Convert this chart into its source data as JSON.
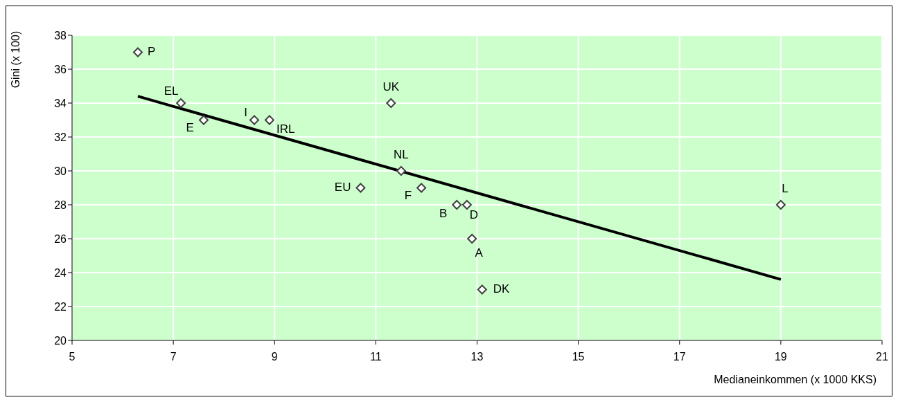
{
  "chart_data": {
    "type": "scatter",
    "xlabel": "Medianeinkommen (x 1000 KKS)",
    "ylabel": "Gini (x 100)",
    "xlim": [
      5,
      21
    ],
    "xticks": [
      5,
      7,
      9,
      11,
      13,
      15,
      17,
      19,
      21
    ],
    "ylim": [
      20,
      38
    ],
    "yticks": [
      20,
      22,
      24,
      26,
      28,
      30,
      32,
      34,
      36,
      38
    ],
    "grid": true,
    "series": [
      {
        "marker": "diamond",
        "color": "#404040",
        "x": [
          6.3,
          7.15,
          7.6,
          8.6,
          8.9,
          11.3,
          11.5,
          10.7,
          11.9,
          12.6,
          12.8,
          12.9,
          13.1,
          19.0
        ],
        "values": [
          37,
          34,
          33,
          33,
          33,
          34,
          30,
          29,
          29,
          28,
          28,
          26,
          23,
          28
        ]
      },
      {
        "type": "line",
        "color": "#000000",
        "line_style": "solid",
        "x": [
          6.3,
          19.0
        ],
        "values": [
          34.4,
          23.6
        ]
      }
    ],
    "annotations": [
      {
        "text": "P",
        "x": 6.3,
        "y": 37
      },
      {
        "text": "EL",
        "x": 7.15,
        "y": 34
      },
      {
        "text": "E",
        "x": 7.6,
        "y": 33
      },
      {
        "text": "I",
        "x": 8.6,
        "y": 33
      },
      {
        "text": "IRL",
        "x": 8.9,
        "y": 33
      },
      {
        "text": "UK",
        "x": 11.3,
        "y": 34
      },
      {
        "text": "NL",
        "x": 11.5,
        "y": 30
      },
      {
        "text": "EU",
        "x": 10.7,
        "y": 29
      },
      {
        "text": "F",
        "x": 11.9,
        "y": 29
      },
      {
        "text": "B",
        "x": 12.6,
        "y": 28
      },
      {
        "text": "D",
        "x": 12.8,
        "y": 28
      },
      {
        "text": "A",
        "x": 12.9,
        "y": 26
      },
      {
        "text": "DK",
        "x": 13.1,
        "y": 23
      },
      {
        "text": "L",
        "x": 19.0,
        "y": 28
      }
    ]
  }
}
